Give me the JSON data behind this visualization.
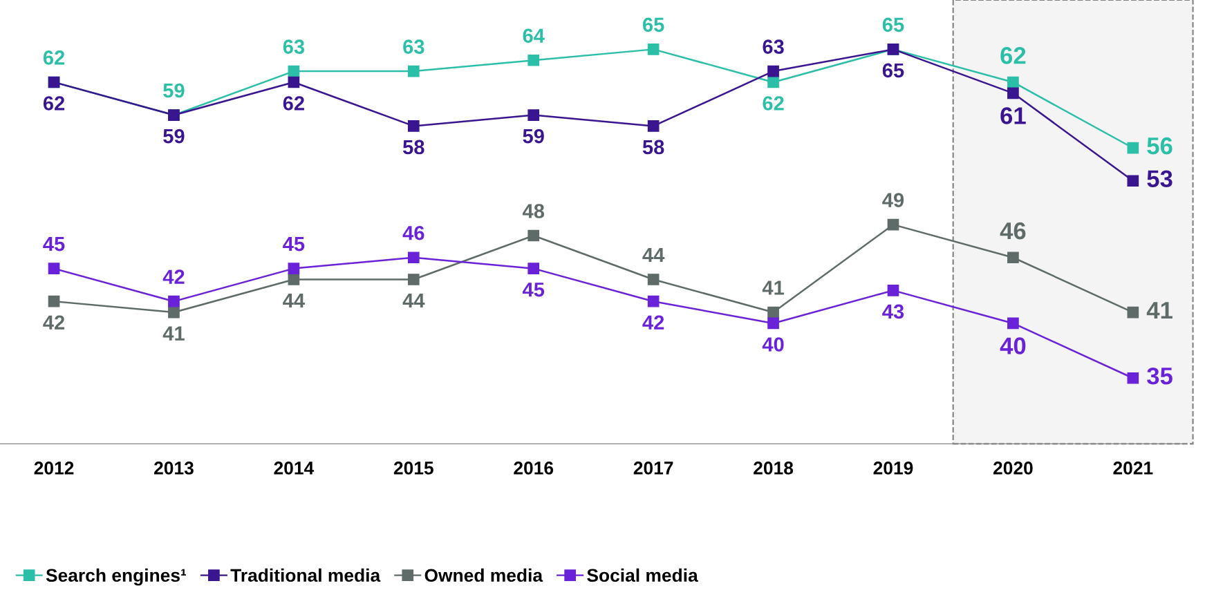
{
  "chart_data": {
    "type": "line",
    "categories": [
      "2012",
      "2013",
      "2014",
      "2015",
      "2016",
      "2017",
      "2018",
      "2019",
      "2020",
      "2021"
    ],
    "series": [
      {
        "name": "Search engines¹",
        "color": "#2cbfa8",
        "values": [
          62,
          59,
          63,
          63,
          64,
          65,
          62,
          65,
          62,
          56
        ]
      },
      {
        "name": "Traditional media",
        "color": "#3a1590",
        "values": [
          62,
          59,
          62,
          58,
          59,
          58,
          63,
          65,
          61,
          53
        ]
      },
      {
        "name": "Owned media",
        "color": "#5e6b69",
        "values": [
          42,
          41,
          44,
          44,
          48,
          44,
          41,
          49,
          46,
          41
        ]
      },
      {
        "name": "Social media",
        "color": "#6a22d8",
        "values": [
          45,
          42,
          45,
          46,
          45,
          42,
          40,
          43,
          40,
          35
        ]
      }
    ],
    "data_labels": true,
    "marker": "square",
    "line_style": "solid",
    "grid": false,
    "legend": "bottom left",
    "tick_labels": "x",
    "bands": [
      {
        "axis": "x",
        "from": "2020",
        "to": "2021",
        "color": "#f4f4f4"
      }
    ]
  }
}
